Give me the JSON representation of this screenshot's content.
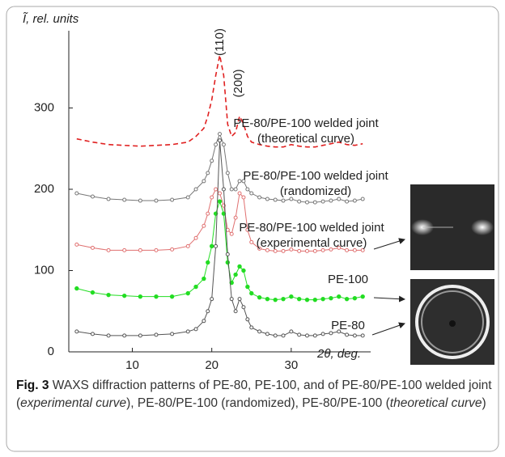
{
  "chart_data": {
    "type": "line",
    "ylabel": "Ĩ, rel. units",
    "xlabel": "2θ, deg.",
    "xlim": [
      2,
      40
    ],
    "xticks": [
      10,
      20,
      30
    ],
    "ylim": [
      0,
      395
    ],
    "yticks": [
      0,
      100,
      200,
      300
    ],
    "x": [
      3,
      5,
      7,
      9,
      11,
      13,
      15,
      17,
      18,
      19,
      19.5,
      20,
      20.5,
      21,
      21.5,
      22,
      22.5,
      23,
      23.5,
      24,
      24.5,
      25,
      26,
      27,
      28,
      29,
      30,
      31,
      32,
      33,
      34,
      35,
      36,
      37,
      38,
      39
    ],
    "annotations": [
      "(110)",
      "(200)"
    ],
    "series": [
      {
        "label": [
          "PE-80/PE-100 welded joint",
          "(theoretical curve)"
        ],
        "color": "#e02020",
        "style": "dashed",
        "values": [
          262,
          258,
          255,
          254,
          253,
          254,
          255,
          258,
          265,
          275,
          290,
          310,
          340,
          365,
          340,
          280,
          265,
          270,
          290,
          280,
          265,
          258,
          255,
          253,
          252,
          252,
          255,
          253,
          252,
          252,
          254,
          256,
          258,
          255,
          254,
          256
        ]
      },
      {
        "label": [
          "PE-80/PE-100 welded joint",
          "(randomized)"
        ],
        "color": "#777777",
        "style": "open",
        "values": [
          195,
          191,
          188,
          187,
          186,
          186,
          187,
          190,
          200,
          210,
          220,
          235,
          255,
          268,
          255,
          220,
          200,
          200,
          210,
          210,
          200,
          195,
          190,
          188,
          187,
          186,
          188,
          185,
          184,
          184,
          185,
          186,
          188,
          185,
          186,
          188
        ]
      },
      {
        "label": [
          "PE-80/PE-100 welded joint",
          "(experimental curve)"
        ],
        "color": "#e07070",
        "style": "open",
        "values": [
          132,
          128,
          125,
          125,
          125,
          125,
          126,
          130,
          140,
          155,
          170,
          190,
          200,
          195,
          180,
          150,
          145,
          165,
          195,
          190,
          150,
          135,
          127,
          125,
          124,
          124,
          126,
          124,
          124,
          124,
          125,
          126,
          128,
          125,
          125,
          125
        ]
      },
      {
        "label": [
          "PE-100"
        ],
        "color": "#22dd22",
        "style": "filled",
        "values": [
          78,
          73,
          70,
          69,
          68,
          68,
          68,
          72,
          80,
          90,
          110,
          130,
          170,
          185,
          170,
          110,
          85,
          95,
          105,
          100,
          80,
          72,
          67,
          65,
          64,
          65,
          68,
          65,
          64,
          64,
          65,
          66,
          68,
          65,
          66,
          68
        ]
      },
      {
        "label": [
          "PE-80"
        ],
        "color": "#555555",
        "style": "open",
        "values": [
          25,
          22,
          20,
          20,
          20,
          21,
          22,
          25,
          28,
          38,
          50,
          65,
          130,
          260,
          200,
          120,
          65,
          50,
          65,
          55,
          40,
          30,
          25,
          22,
          20,
          20,
          25,
          21,
          20,
          20,
          22,
          23,
          25,
          21,
          20,
          20
        ]
      }
    ]
  },
  "caption": {
    "label": "Fig. 3",
    "parts": [
      "WAXS diffraction patterns of PE-80, PE-100, and of PE-80/PE-100 welded joint (",
      "experimental curve",
      "), PE-80/PE-100 (randomized), PE-80/PE-100 (",
      "theoretical curve",
      ")"
    ]
  }
}
